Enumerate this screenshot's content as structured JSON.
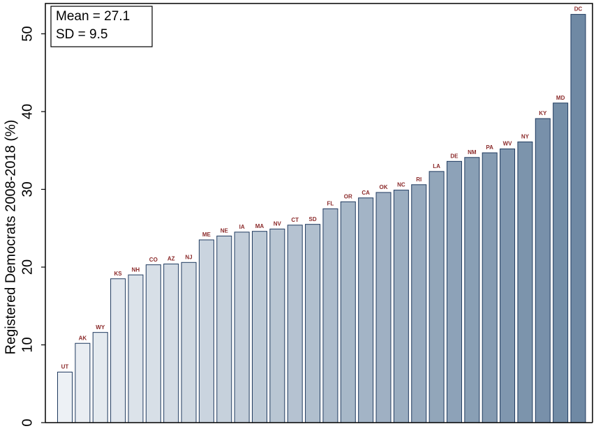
{
  "chart_data": {
    "type": "bar",
    "y_label": "Registered Democrats 2008-2018 (%)",
    "annotations": [
      "Mean = 27.1",
      "SD = 9.5"
    ],
    "categories": [
      "UT",
      "AK",
      "WY",
      "KS",
      "NH",
      "CO",
      "AZ",
      "NJ",
      "ME",
      "NE",
      "IA",
      "MA",
      "NV",
      "CT",
      "SD",
      "FL",
      "OR",
      "CA",
      "OK",
      "NC",
      "RI",
      "LA",
      "DE",
      "NM",
      "PA",
      "WV",
      "NY",
      "KY",
      "MD",
      "DC"
    ],
    "values": [
      6.5,
      10.2,
      11.6,
      18.5,
      19.0,
      20.3,
      20.4,
      20.6,
      23.5,
      24.0,
      24.5,
      24.6,
      24.9,
      25.4,
      25.5,
      27.5,
      28.4,
      28.9,
      29.6,
      29.9,
      30.6,
      32.3,
      33.6,
      34.1,
      34.7,
      35.2,
      36.1,
      39.1,
      41.1,
      52.5
    ],
    "color_range": [
      "#edf1f5",
      "#6f89a4"
    ],
    "ylim": [
      0,
      53.9
    ],
    "yticks": [
      0,
      10,
      20,
      30,
      40,
      50
    ]
  }
}
